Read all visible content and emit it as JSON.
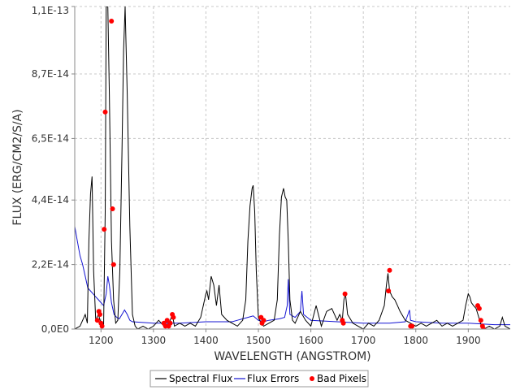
{
  "chart_data": {
    "type": "line",
    "xlabel": "WAVELENGTH (ANGSTROM)",
    "ylabel": "FLUX (ERG/CM2/S/A)",
    "xlim": [
      1150,
      1980
    ],
    "ylim": [
      0,
      1.1e-13
    ],
    "x_ticks": [
      1200,
      1300,
      1400,
      1500,
      1600,
      1700,
      1800,
      1900
    ],
    "x_tick_labels": [
      "1200",
      "1300",
      "1400",
      "1500",
      "1600",
      "1700",
      "1800",
      "1900"
    ],
    "y_ticks": [
      0,
      2.2e-14,
      4.4e-14,
      6.5e-14,
      8.7e-14,
      1.1e-13
    ],
    "y_tick_labels": [
      "0,0E0",
      "2,2E-14",
      "4,4E-14",
      "6,5E-14",
      "8,7E-14",
      "1,1E-13"
    ],
    "grid": true,
    "legend_position": "bottom-center",
    "colors": {
      "flux": "#000000",
      "errors": "#1414d2",
      "bad_pixels": "#ff0000",
      "grid": "#c8c8c8",
      "axis": "#888888"
    },
    "series": [
      {
        "name": "Spectral Flux",
        "x": [
          1150,
          1160,
          1170,
          1174,
          1177,
          1180,
          1183,
          1186,
          1190,
          1195,
          1200,
          1205,
          1208,
          1210,
          1213,
          1216,
          1220,
          1224,
          1228,
          1232,
          1236,
          1240,
          1243,
          1246,
          1250,
          1255,
          1260,
          1265,
          1270,
          1280,
          1290,
          1300,
          1310,
          1320,
          1330,
          1336,
          1340,
          1350,
          1360,
          1370,
          1380,
          1390,
          1395,
          1400,
          1402,
          1405,
          1410,
          1415,
          1420,
          1425,
          1430,
          1440,
          1450,
          1460,
          1470,
          1476,
          1480,
          1484,
          1488,
          1490,
          1493,
          1496,
          1500,
          1505,
          1510,
          1520,
          1530,
          1536,
          1540,
          1544,
          1548,
          1551,
          1554,
          1557,
          1560,
          1565,
          1570,
          1580,
          1590,
          1600,
          1610,
          1620,
          1630,
          1640,
          1650,
          1655,
          1660,
          1663,
          1666,
          1670,
          1680,
          1690,
          1700,
          1710,
          1720,
          1730,
          1740,
          1744,
          1747,
          1750,
          1755,
          1760,
          1765,
          1770,
          1780,
          1790,
          1800,
          1810,
          1820,
          1830,
          1840,
          1850,
          1860,
          1870,
          1880,
          1890,
          1895,
          1900,
          1903,
          1906,
          1910,
          1915,
          1920,
          1925,
          1930,
          1940,
          1950,
          1960,
          1965,
          1970,
          1980
        ],
        "values": [
          0,
          1e-15,
          5e-15,
          2e-15,
          3e-14,
          4.6e-14,
          5.2e-14,
          2e-14,
          3e-15,
          5e-15,
          2e-15,
          1e-15,
          4e-14,
          1.1e-13,
          1.1e-13,
          8e-14,
          3e-14,
          1e-14,
          2e-15,
          3e-15,
          2e-14,
          6e-14,
          9.5e-14,
          1.1e-13,
          8e-14,
          3.5e-14,
          5e-15,
          1e-15,
          0,
          1e-15,
          0,
          1e-15,
          3e-15,
          1e-15,
          2e-15,
          5e-15,
          1e-15,
          2e-15,
          1e-15,
          2e-15,
          1e-15,
          4e-15,
          8e-15,
          1.2e-14,
          1.3e-14,
          1e-14,
          1.8e-14,
          1.5e-14,
          8e-15,
          1.5e-14,
          5e-15,
          3e-15,
          2e-15,
          1e-15,
          3e-15,
          1e-14,
          3e-14,
          4.2e-14,
          4.8e-14,
          4.9e-14,
          4e-14,
          2e-14,
          4e-15,
          2e-15,
          1e-15,
          2e-15,
          3e-15,
          1e-14,
          3.2e-14,
          4.5e-14,
          4.8e-14,
          4.5e-14,
          4.4e-14,
          3e-14,
          1e-14,
          3e-15,
          2e-15,
          6e-15,
          3e-15,
          1e-15,
          8e-15,
          1e-15,
          6e-15,
          7e-15,
          3e-15,
          5e-15,
          3e-15,
          1e-14,
          1.2e-14,
          5e-15,
          2e-15,
          1e-15,
          0,
          2e-15,
          1e-15,
          3e-15,
          8e-15,
          1.5e-14,
          1.9e-14,
          1.3e-14,
          1.1e-14,
          1e-14,
          8e-15,
          6e-15,
          3e-15,
          2e-15,
          1e-15,
          2e-15,
          1e-15,
          2e-15,
          3e-15,
          1e-15,
          2e-15,
          1e-15,
          2e-15,
          3e-15,
          8e-15,
          1.2e-14,
          1.1e-14,
          9e-15,
          8e-15,
          7e-15,
          4e-15,
          1e-15,
          0,
          1e-15,
          0,
          1e-15,
          4e-15,
          1e-15,
          0
        ]
      },
      {
        "name": "Flux Errors",
        "x": [
          1150,
          1155,
          1160,
          1165,
          1170,
          1175,
          1180,
          1185,
          1190,
          1195,
          1200,
          1205,
          1210,
          1213,
          1216,
          1220,
          1225,
          1230,
          1235,
          1240,
          1245,
          1250,
          1255,
          1260,
          1300,
          1350,
          1400,
          1450,
          1460,
          1470,
          1480,
          1490,
          1500,
          1510,
          1520,
          1540,
          1550,
          1555,
          1557,
          1560,
          1570,
          1580,
          1583,
          1586,
          1600,
          1650,
          1700,
          1750,
          1780,
          1785,
          1788,
          1790,
          1800,
          1850,
          1900,
          1950,
          1980
        ],
        "values": [
          3.5e-14,
          3e-14,
          2.5e-14,
          2.2e-14,
          1.8e-14,
          1.4e-14,
          1.3e-14,
          1.2e-14,
          1.1e-14,
          1e-14,
          9e-15,
          8e-15,
          1.2e-14,
          1.8e-14,
          1.5e-14,
          9e-15,
          5e-15,
          4e-15,
          3.5e-15,
          5e-15,
          6.5e-15,
          5e-15,
          3e-15,
          2.5e-15,
          2e-15,
          2e-15,
          2.5e-15,
          2.5e-15,
          3e-15,
          3.5e-15,
          4e-15,
          4.5e-15,
          3e-15,
          2.5e-15,
          3e-15,
          3.5e-15,
          4e-15,
          8e-15,
          1.7e-14,
          5e-15,
          4e-15,
          6e-15,
          1.3e-14,
          5e-15,
          3e-15,
          2.5e-15,
          2e-15,
          2e-15,
          2.5e-15,
          5e-15,
          6.5e-15,
          3e-15,
          2.5e-15,
          2e-15,
          2e-15,
          1.5e-15,
          1.5e-15
        ]
      },
      {
        "name": "Bad Pixels",
        "x": [
          1193,
          1196,
          1198,
          1200,
          1202,
          1206,
          1208,
          1220,
          1222,
          1224,
          1320,
          1323,
          1326,
          1329,
          1332,
          1336,
          1338,
          1505,
          1507,
          1510,
          1660,
          1662,
          1665,
          1748,
          1750,
          1790,
          1793,
          1918,
          1921,
          1924,
          1927,
          1929
        ],
        "values": [
          3e-15,
          6e-15,
          5e-15,
          2e-15,
          1e-15,
          3.4e-14,
          7.4e-14,
          1.05e-13,
          4.1e-14,
          2.2e-14,
          2e-15,
          1e-15,
          3e-15,
          1e-15,
          2e-15,
          5e-15,
          4e-15,
          4e-15,
          2e-15,
          3e-15,
          3e-15,
          2e-15,
          1.2e-14,
          1.3e-14,
          2e-14,
          1e-15,
          1e-15,
          8e-15,
          7e-15,
          3e-15,
          1e-15,
          0
        ]
      }
    ]
  }
}
